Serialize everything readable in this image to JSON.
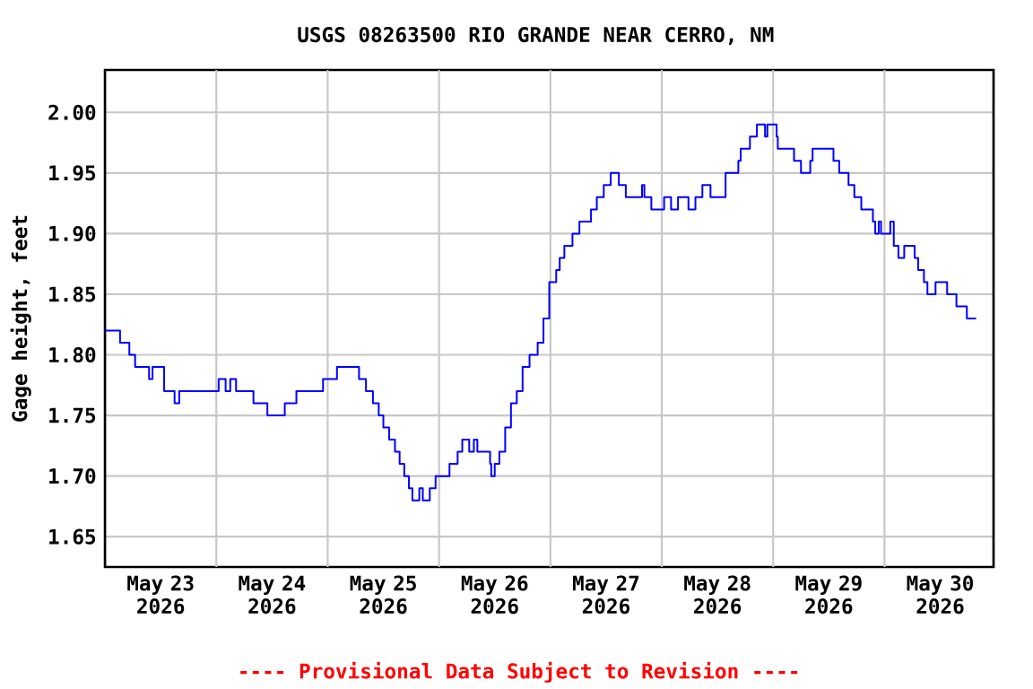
{
  "chart_data": {
    "type": "step",
    "title": "USGS 08263500 RIO GRANDE NEAR CERRO, NM",
    "ylabel": "Gage height, feet",
    "annotations": [
      "---- Provisional Data Subject to Revision ----"
    ],
    "xlim": [
      "2026-05-23T00:00",
      "2026-05-30T23:30"
    ],
    "xticks": [
      {
        "value": "2026-05-23T12:00",
        "label": "May 23 2026"
      },
      {
        "value": "2026-05-24T12:00",
        "label": "May 24 2026"
      },
      {
        "value": "2026-05-25T12:00",
        "label": "May 25 2026"
      },
      {
        "value": "2026-05-26T12:00",
        "label": "May 26 2026"
      },
      {
        "value": "2026-05-27T12:00",
        "label": "May 27 2026"
      },
      {
        "value": "2026-05-28T12:00",
        "label": "May 28 2026"
      },
      {
        "value": "2026-05-29T12:00",
        "label": "May 29 2026"
      },
      {
        "value": "2026-05-30T12:00",
        "label": "May 30 2026"
      },
      {
        "value": "2026-05-24T00:00",
        "label": null
      },
      {
        "value": "2026-05-25T00:00",
        "label": null
      },
      {
        "value": "2026-05-26T00:00",
        "label": null
      },
      {
        "value": "2026-05-27T00:00",
        "label": null
      },
      {
        "value": "2026-05-28T00:00",
        "label": null
      },
      {
        "value": "2026-05-29T00:00",
        "label": null
      },
      {
        "value": "2026-05-30T00:00",
        "label": null
      }
    ],
    "ylim": [
      1.625,
      2.035
    ],
    "yticks": [
      1.65,
      {
        "value": 1.7,
        "label": "1.70"
      },
      1.75,
      {
        "value": 1.8,
        "label": "1.80"
      },
      1.85,
      {
        "value": 1.9,
        "label": "1.90"
      },
      1.95,
      {
        "value": 2.0,
        "label": "2.00"
      }
    ],
    "grid": true,
    "series": [
      {
        "color": "#0000ff",
        "x": [
          "2026-05-23T00:00",
          "2026-05-23T03:15",
          "2026-05-23T05:15",
          "2026-05-23T06:30",
          "2026-05-23T09:30",
          "2026-05-23T10:15",
          "2026-05-23T12:45",
          "2026-05-23T15:00",
          "2026-05-23T16:00",
          "2026-05-24T00:30",
          "2026-05-24T02:00",
          "2026-05-24T03:00",
          "2026-05-24T04:15",
          "2026-05-24T08:00",
          "2026-05-24T11:00",
          "2026-05-24T14:45",
          "2026-05-24T17:15",
          "2026-05-24T23:00",
          "2026-05-25T02:00",
          "2026-05-25T06:45",
          "2026-05-25T08:15",
          "2026-05-25T09:45",
          "2026-05-25T11:00",
          "2026-05-25T12:00",
          "2026-05-25T13:15",
          "2026-05-25T14:30",
          "2026-05-25T15:30",
          "2026-05-25T16:30",
          "2026-05-25T17:30",
          "2026-05-25T18:15",
          "2026-05-25T19:45",
          "2026-05-25T20:30",
          "2026-05-25T22:00",
          "2026-05-25T23:15",
          "2026-05-26T02:15",
          "2026-05-26T04:00",
          "2026-05-26T05:00",
          "2026-05-26T06:30",
          "2026-05-26T07:30",
          "2026-05-26T08:15",
          "2026-05-26T11:00",
          "2026-05-26T11:15",
          "2026-05-26T12:00",
          "2026-05-26T13:00",
          "2026-05-26T14:15",
          "2026-05-26T15:30",
          "2026-05-26T16:45",
          "2026-05-26T18:00",
          "2026-05-26T19:30",
          "2026-05-26T21:15",
          "2026-05-26T22:30",
          "2026-05-26T23:45",
          "2026-05-27T01:15",
          "2026-05-27T02:00",
          "2026-05-27T03:00",
          "2026-05-27T04:45",
          "2026-05-27T06:15",
          "2026-05-27T08:45",
          "2026-05-27T10:00",
          "2026-05-27T11:30",
          "2026-05-27T13:00",
          "2026-05-27T14:45",
          "2026-05-27T16:15",
          "2026-05-27T19:45",
          "2026-05-27T20:15",
          "2026-05-27T21:45",
          "2026-05-28T00:30",
          "2026-05-28T02:00",
          "2026-05-28T03:30",
          "2026-05-28T05:45",
          "2026-05-28T07:15",
          "2026-05-28T08:45",
          "2026-05-28T10:30",
          "2026-05-28T11:15",
          "2026-05-28T13:45",
          "2026-05-28T16:30",
          "2026-05-28T17:00",
          "2026-05-28T19:00",
          "2026-05-28T20:30",
          "2026-05-28T22:15",
          "2026-05-28T22:45",
          "2026-05-29T00:45",
          "2026-05-29T01:00",
          "2026-05-29T04:30",
          "2026-05-29T06:00",
          "2026-05-29T08:00",
          "2026-05-29T08:30",
          "2026-05-29T13:00",
          "2026-05-29T14:15",
          "2026-05-29T16:15",
          "2026-05-29T17:30",
          "2026-05-29T19:00",
          "2026-05-29T21:30",
          "2026-05-29T22:00",
          "2026-05-29T22:45",
          "2026-05-29T23:15",
          "2026-05-30T01:15",
          "2026-05-30T02:00",
          "2026-05-30T03:00",
          "2026-05-30T04:15",
          "2026-05-30T06:30",
          "2026-05-30T07:15",
          "2026-05-30T08:30",
          "2026-05-30T09:15",
          "2026-05-30T11:00",
          "2026-05-30T13:30",
          "2026-05-30T15:30",
          "2026-05-30T17:45",
          "2026-05-30T18:45",
          "2026-05-30T19:45"
        ],
        "values": [
          1.82,
          1.81,
          1.8,
          1.79,
          1.78,
          1.79,
          1.77,
          1.76,
          1.77,
          1.78,
          1.77,
          1.78,
          1.77,
          1.76,
          1.75,
          1.76,
          1.77,
          1.78,
          1.79,
          1.78,
          1.77,
          1.76,
          1.75,
          1.74,
          1.73,
          1.72,
          1.71,
          1.7,
          1.69,
          1.68,
          1.69,
          1.68,
          1.69,
          1.7,
          1.71,
          1.72,
          1.73,
          1.72,
          1.73,
          1.72,
          1.71,
          1.7,
          1.71,
          1.72,
          1.74,
          1.76,
          1.77,
          1.79,
          1.8,
          1.81,
          1.83,
          1.86,
          1.87,
          1.88,
          1.89,
          1.9,
          1.91,
          1.92,
          1.93,
          1.94,
          1.95,
          1.94,
          1.93,
          1.94,
          1.93,
          1.92,
          1.93,
          1.92,
          1.93,
          1.92,
          1.93,
          1.94,
          1.93,
          1.93,
          1.95,
          1.96,
          1.97,
          1.98,
          1.99,
          1.98,
          1.99,
          1.98,
          1.97,
          1.96,
          1.95,
          1.96,
          1.97,
          1.96,
          1.95,
          1.94,
          1.93,
          1.92,
          1.91,
          1.9,
          1.91,
          1.9,
          1.91,
          1.89,
          1.88,
          1.89,
          1.88,
          1.87,
          1.86,
          1.85,
          1.86,
          1.85,
          1.84,
          1.83,
          1.83,
          1.83
        ]
      }
    ]
  }
}
